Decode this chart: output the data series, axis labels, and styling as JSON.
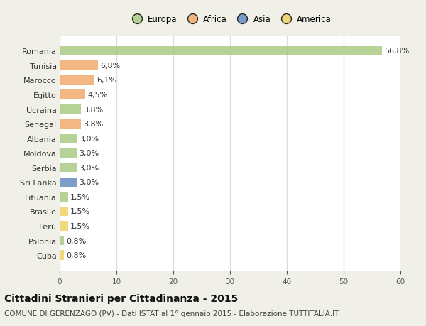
{
  "countries": [
    "Romania",
    "Tunisia",
    "Marocco",
    "Egitto",
    "Ucraina",
    "Senegal",
    "Albania",
    "Moldova",
    "Serbia",
    "Sri Lanka",
    "Lituania",
    "Brasile",
    "Perù",
    "Polonia",
    "Cuba"
  ],
  "values": [
    56.8,
    6.8,
    6.1,
    4.5,
    3.8,
    3.8,
    3.0,
    3.0,
    3.0,
    3.0,
    1.5,
    1.5,
    1.5,
    0.8,
    0.8
  ],
  "continents": [
    "Europa",
    "Africa",
    "Africa",
    "Africa",
    "Europa",
    "Africa",
    "Europa",
    "Europa",
    "Europa",
    "Asia",
    "Europa",
    "America",
    "America",
    "Europa",
    "America"
  ],
  "colors": {
    "Europa": "#a8c97f",
    "Africa": "#f0a868",
    "Asia": "#6088c0",
    "America": "#f0d060"
  },
  "xlim": [
    0,
    60
  ],
  "xticks": [
    0,
    10,
    20,
    30,
    40,
    50,
    60
  ],
  "title": "Cittadini Stranieri per Cittadinanza - 2015",
  "subtitle": "COMUNE DI GERENZAGO (PV) - Dati ISTAT al 1° gennaio 2015 - Elaborazione TUTTITALIA.IT",
  "fig_bg_color": "#f0f0e8",
  "plot_bg_color": "#ffffff",
  "bar_alpha": 0.82,
  "grid_color": "#dddddd",
  "label_fontsize": 8,
  "value_fontsize": 8,
  "title_fontsize": 10,
  "subtitle_fontsize": 7.5,
  "legend_order": [
    "Europa",
    "Africa",
    "Asia",
    "America"
  ]
}
